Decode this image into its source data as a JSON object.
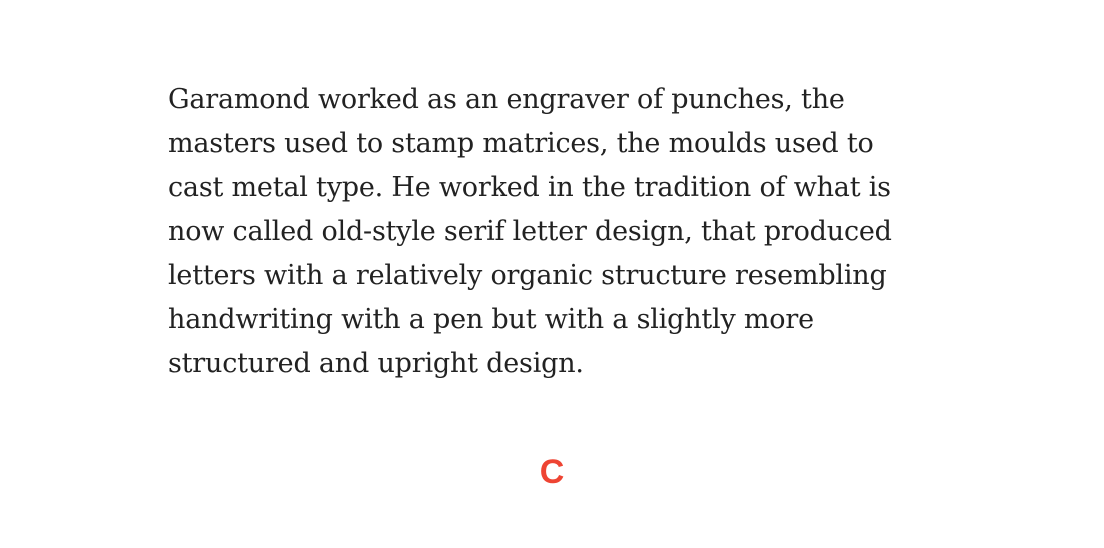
{
  "paragraph": {
    "lines": [
      "Garamond worked as an engraver of punches, the",
      "masters used to stamp matrices, the moulds used to",
      "cast metal type. He worked in the tradition of what is",
      "now called old-style serif letter design, that produced",
      "letters with a relatively organic structure resembling",
      "handwriting with a pen but with a slightly more",
      "structured and upright design."
    ]
  },
  "marker": {
    "label": "C",
    "color": "#ee4433"
  }
}
